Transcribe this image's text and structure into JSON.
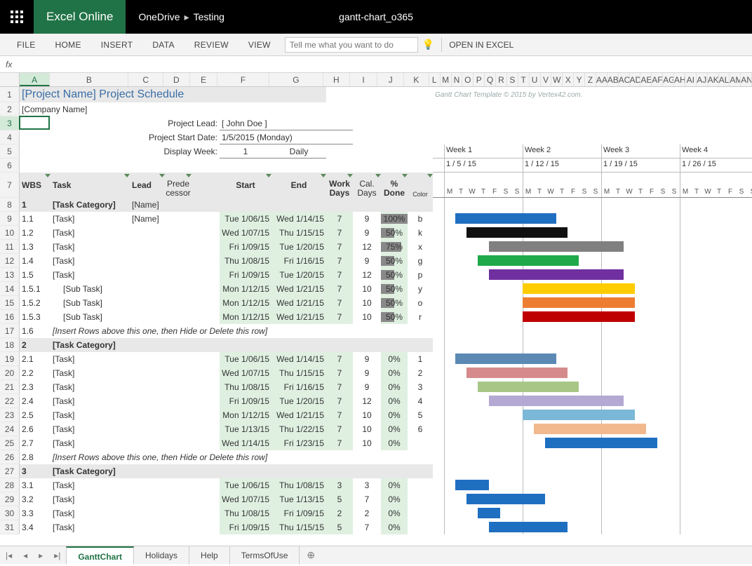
{
  "titlebar": {
    "appName": "Excel Online",
    "crumb1": "OneDrive",
    "crumb2": "Testing",
    "docTitle": "gantt-chart_o365"
  },
  "ribbon": {
    "tabs": [
      "FILE",
      "HOME",
      "INSERT",
      "DATA",
      "REVIEW",
      "VIEW"
    ],
    "tellme": "Tell me what you want to do",
    "openExcel": "OPEN IN EXCEL"
  },
  "fxLabel": "fx",
  "columns": [
    {
      "l": "A",
      "w": 44
    },
    {
      "l": "B",
      "w": 113
    },
    {
      "l": "C",
      "w": 50
    },
    {
      "l": "D",
      "w": 38
    },
    {
      "l": "E",
      "w": 40
    },
    {
      "l": "F",
      "w": 74
    },
    {
      "l": "G",
      "w": 78
    },
    {
      "l": "H",
      "w": 38
    },
    {
      "l": "I",
      "w": 40
    },
    {
      "l": "J",
      "w": 38
    },
    {
      "l": "K",
      "w": 36
    },
    {
      "l": "L",
      "w": 16
    },
    {
      "l": "M",
      "w": 16
    },
    {
      "l": "N",
      "w": 16
    },
    {
      "l": "O",
      "w": 16
    },
    {
      "l": "P",
      "w": 16
    },
    {
      "l": "Q",
      "w": 16
    },
    {
      "l": "R",
      "w": 16
    },
    {
      "l": "S",
      "w": 16
    },
    {
      "l": "T",
      "w": 16
    },
    {
      "l": "U",
      "w": 16
    },
    {
      "l": "V",
      "w": 16
    },
    {
      "l": "W",
      "w": 16
    },
    {
      "l": "X",
      "w": 16
    },
    {
      "l": "Y",
      "w": 16
    },
    {
      "l": "Z",
      "w": 16
    },
    {
      "l": "AA",
      "w": 16
    },
    {
      "l": "AB",
      "w": 16
    },
    {
      "l": "AC",
      "w": 16
    },
    {
      "l": "AD",
      "w": 16
    },
    {
      "l": "AE",
      "w": 16
    },
    {
      "l": "AF",
      "w": 16
    },
    {
      "l": "AG",
      "w": 16
    },
    {
      "l": "AH",
      "w": 16
    },
    {
      "l": "AI",
      "w": 16
    },
    {
      "l": "AJ",
      "w": 16
    },
    {
      "l": "AK",
      "w": 16
    },
    {
      "l": "AL",
      "w": 16
    },
    {
      "l": "AM",
      "w": 16
    },
    {
      "l": "AN",
      "w": 16
    }
  ],
  "rowHeights": {
    "default": 20,
    "r1": 22,
    "r5": 20,
    "r6": 20,
    "r7": 36
  },
  "rowCount": 31,
  "hdrBands": [
    {
      "row": 1,
      "colStart": 0,
      "colEnd": 7
    },
    {
      "row": 7,
      "colStart": 0,
      "colEnd": 11
    }
  ],
  "title": {
    "text": "[Project Name] Project Schedule",
    "color": "#3a6ea5",
    "size": 16
  },
  "templateCredit": "Gantt Chart Template © 2015 by Vertex42.com.",
  "meta": {
    "company": "[Company Name]",
    "leadLabel": "Project Lead:",
    "lead": "[ John Doe ]",
    "startLabel": "Project Start Date:",
    "start": "1/5/2015 (Monday)",
    "weekLabel": "Display Week:",
    "week": "1",
    "weekMode": "Daily"
  },
  "headers": {
    "wbs": "WBS",
    "task": "Task",
    "lead": "Lead",
    "pred": "Prede\ncessor",
    "start": "Start",
    "end": "End",
    "workdays": "Work\nDays",
    "caldays": "Cal.\nDays",
    "done": "%\nDone",
    "color": "Color"
  },
  "weeks": [
    {
      "label": "Week 1",
      "date": "1 / 5 / 15"
    },
    {
      "label": "Week 2",
      "date": "1 / 12 / 15"
    },
    {
      "label": "Week 3",
      "date": "1 / 19 / 15"
    },
    {
      "label": "Week 4",
      "date": "1 / 26 / 15"
    }
  ],
  "dayLetters": [
    "M",
    "T",
    "W",
    "T",
    "F",
    "S",
    "S"
  ],
  "tasks": [
    {
      "row": 8,
      "wbs": "1",
      "task": "[Task Category]",
      "lead": "[Name]",
      "cat": true
    },
    {
      "row": 9,
      "wbs": "1.1",
      "task": "[Task]",
      "lead": "[Name]",
      "start": "Tue 1/06/15",
      "end": "Wed 1/14/15",
      "wd": "7",
      "cd": "9",
      "done": 100,
      "color": "b",
      "bar": {
        "s": 1,
        "e": 9,
        "c": "#1f6fc1"
      }
    },
    {
      "row": 10,
      "wbs": "1.2",
      "task": "[Task]",
      "start": "Wed 1/07/15",
      "end": "Thu 1/15/15",
      "wd": "7",
      "cd": "9",
      "done": 50,
      "color": "k",
      "bar": {
        "s": 2,
        "e": 10,
        "c": "#111111"
      }
    },
    {
      "row": 11,
      "wbs": "1.3",
      "task": "[Task]",
      "start": "Fri 1/09/15",
      "end": "Tue 1/20/15",
      "wd": "7",
      "cd": "12",
      "done": 75,
      "color": "x",
      "bar": {
        "s": 4,
        "e": 15,
        "c": "#808080"
      }
    },
    {
      "row": 12,
      "wbs": "1.4",
      "task": "[Task]",
      "start": "Thu 1/08/15",
      "end": "Fri 1/16/15",
      "wd": "7",
      "cd": "9",
      "done": 50,
      "color": "g",
      "bar": {
        "s": 3,
        "e": 11,
        "c": "#1fa94a"
      }
    },
    {
      "row": 13,
      "wbs": "1.5",
      "task": "[Task]",
      "start": "Fri 1/09/15",
      "end": "Tue 1/20/15",
      "wd": "7",
      "cd": "12",
      "done": 50,
      "color": "p",
      "bar": {
        "s": 4,
        "e": 15,
        "c": "#7030a0"
      }
    },
    {
      "row": 14,
      "wbs": "1.5.1",
      "task": "[Sub Task]",
      "indent": 1,
      "start": "Mon 1/12/15",
      "end": "Wed 1/21/15",
      "wd": "7",
      "cd": "10",
      "done": 50,
      "color": "y",
      "bar": {
        "s": 7,
        "e": 16,
        "c": "#ffcc00"
      }
    },
    {
      "row": 15,
      "wbs": "1.5.2",
      "task": "[Sub Task]",
      "indent": 1,
      "start": "Mon 1/12/15",
      "end": "Wed 1/21/15",
      "wd": "7",
      "cd": "10",
      "done": 50,
      "color": "o",
      "bar": {
        "s": 7,
        "e": 16,
        "c": "#ed7d31"
      }
    },
    {
      "row": 16,
      "wbs": "1.5.3",
      "task": "[Sub Task]",
      "indent": 1,
      "start": "Mon 1/12/15",
      "end": "Wed 1/21/15",
      "wd": "7",
      "cd": "10",
      "done": 50,
      "color": "r",
      "bar": {
        "s": 7,
        "e": 16,
        "c": "#c00000"
      }
    },
    {
      "row": 17,
      "wbs": "1.6",
      "task": "[Insert Rows above this one, then Hide or Delete this row]",
      "italic": true
    },
    {
      "row": 18,
      "wbs": "2",
      "task": "[Task Category]",
      "cat": true
    },
    {
      "row": 19,
      "wbs": "2.1",
      "task": "[Task]",
      "start": "Tue 1/06/15",
      "end": "Wed 1/14/15",
      "wd": "7",
      "cd": "9",
      "done": 0,
      "color": "1",
      "bar": {
        "s": 1,
        "e": 9,
        "c": "#5b89b4"
      }
    },
    {
      "row": 20,
      "wbs": "2.2",
      "task": "[Task]",
      "start": "Wed 1/07/15",
      "end": "Thu 1/15/15",
      "wd": "7",
      "cd": "9",
      "done": 0,
      "color": "2",
      "bar": {
        "s": 2,
        "e": 10,
        "c": "#d58b8b"
      }
    },
    {
      "row": 21,
      "wbs": "2.3",
      "task": "[Task]",
      "start": "Thu 1/08/15",
      "end": "Fri 1/16/15",
      "wd": "7",
      "cd": "9",
      "done": 0,
      "color": "3",
      "bar": {
        "s": 3,
        "e": 11,
        "c": "#a8c787"
      }
    },
    {
      "row": 22,
      "wbs": "2.4",
      "task": "[Task]",
      "start": "Fri 1/09/15",
      "end": "Tue 1/20/15",
      "wd": "7",
      "cd": "12",
      "done": 0,
      "color": "4",
      "bar": {
        "s": 4,
        "e": 15,
        "c": "#b3a9d3"
      }
    },
    {
      "row": 23,
      "wbs": "2.5",
      "task": "[Task]",
      "start": "Mon 1/12/15",
      "end": "Wed 1/21/15",
      "wd": "7",
      "cd": "10",
      "done": 0,
      "color": "5",
      "bar": {
        "s": 7,
        "e": 16,
        "c": "#7bb7d6"
      }
    },
    {
      "row": 24,
      "wbs": "2.6",
      "task": "[Task]",
      "start": "Tue 1/13/15",
      "end": "Thu 1/22/15",
      "wd": "7",
      "cd": "10",
      "done": 0,
      "color": "6",
      "bar": {
        "s": 8,
        "e": 17,
        "c": "#f2b98f"
      }
    },
    {
      "row": 25,
      "wbs": "2.7",
      "task": "[Task]",
      "start": "Wed 1/14/15",
      "end": "Fri 1/23/15",
      "wd": "7",
      "cd": "10",
      "done": 0,
      "bar": {
        "s": 9,
        "e": 18,
        "c": "#1f6fc1"
      }
    },
    {
      "row": 26,
      "wbs": "2.8",
      "task": "[Insert Rows above this one, then Hide or Delete this row]",
      "italic": true
    },
    {
      "row": 27,
      "wbs": "3",
      "task": "[Task Category]",
      "cat": true
    },
    {
      "row": 28,
      "wbs": "3.1",
      "task": "[Task]",
      "start": "Tue 1/06/15",
      "end": "Thu 1/08/15",
      "wd": "3",
      "cd": "3",
      "done": 0,
      "bar": {
        "s": 1,
        "e": 3,
        "c": "#1f6fc1"
      }
    },
    {
      "row": 29,
      "wbs": "3.2",
      "task": "[Task]",
      "start": "Wed 1/07/15",
      "end": "Tue 1/13/15",
      "wd": "5",
      "cd": "7",
      "done": 0,
      "bar": {
        "s": 2,
        "e": 8,
        "c": "#1f6fc1"
      }
    },
    {
      "row": 30,
      "wbs": "3.3",
      "task": "[Task]",
      "start": "Thu 1/08/15",
      "end": "Fri 1/09/15",
      "wd": "2",
      "cd": "2",
      "done": 0,
      "bar": {
        "s": 3,
        "e": 4,
        "c": "#1f6fc1"
      }
    },
    {
      "row": 31,
      "wbs": "3.4",
      "task": "[Task]",
      "start": "Fri 1/09/15",
      "end": "Thu 1/15/15",
      "wd": "5",
      "cd": "7",
      "done": 0,
      "bar": {
        "s": 4,
        "e": 10,
        "c": "#1f6fc1"
      }
    }
  ],
  "ganttStartCol": 12,
  "selection": {
    "row": 3,
    "col": 0
  },
  "sheets": {
    "active": "GanttChart",
    "tabs": [
      "GanttChart",
      "Holidays",
      "Help",
      "TermsOfUse"
    ]
  }
}
